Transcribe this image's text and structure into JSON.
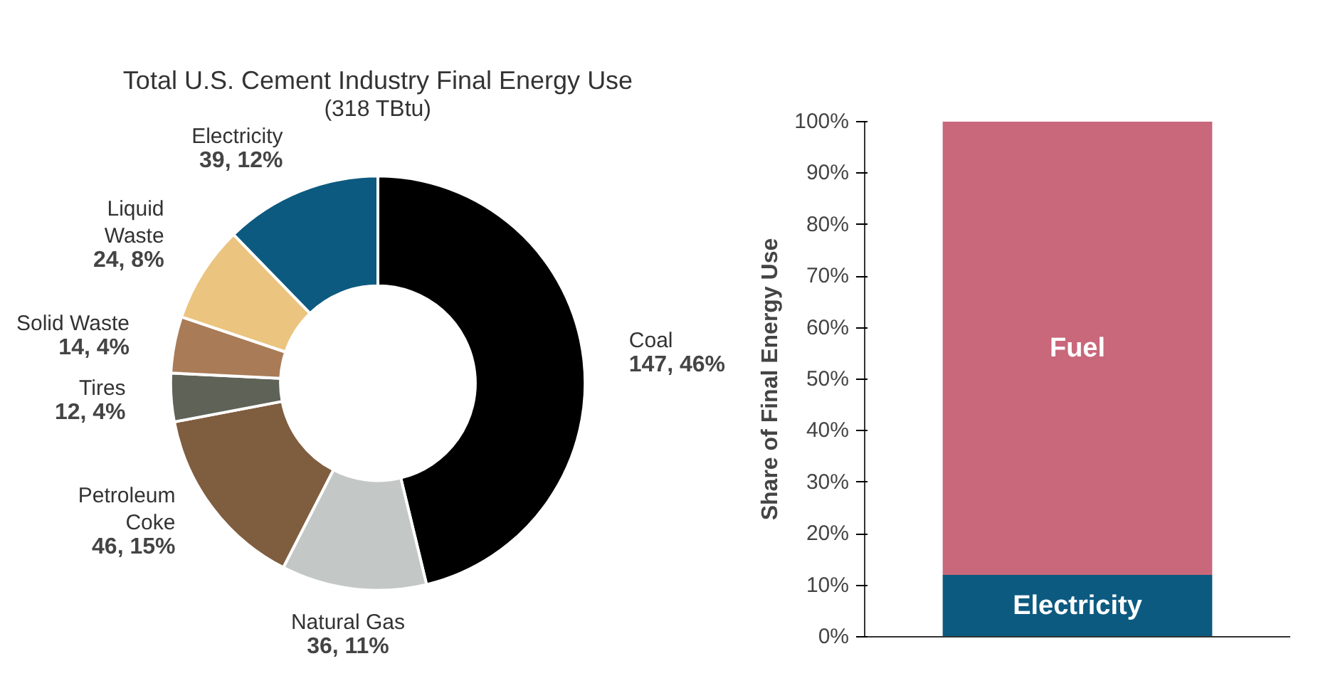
{
  "chart_data": [
    {
      "type": "donut",
      "title": "Total U.S. Cement Industry Final Energy Use",
      "subtitle": "(318 TBtu)",
      "categories": [
        "Coal",
        "Natural Gas",
        "Petroleum\nCoke",
        "Tires",
        "Solid Waste",
        "Liquid\nWaste",
        "Electricity"
      ],
      "values": [
        147,
        36,
        46,
        12,
        14,
        24,
        39
      ],
      "value_labels": [
        "147, 46%",
        "36, 11%",
        "46, 15%",
        "12, 4%",
        "14, 4%",
        "24, 8%",
        "39, 12%"
      ],
      "colors": [
        "#000000",
        "#c3c8c6",
        "#7f5d3f",
        "#5f6257",
        "#a97b57",
        "#ebc47f",
        "#0d5a80"
      ]
    },
    {
      "type": "bar",
      "stacked": true,
      "categories": [
        null
      ],
      "ylabel": "Share of Final Energy Use",
      "series": [
        {
          "name": "Electricity",
          "color": "#0d5a80",
          "values": [
            12
          ]
        },
        {
          "name": "Fuel",
          "color": "#c8687a",
          "values": [
            88
          ]
        }
      ],
      "ylim": [
        0,
        100
      ],
      "yticks": [
        {
          "value": 0,
          "label": "0%"
        },
        {
          "value": 10,
          "label": "10%"
        },
        {
          "value": 20,
          "label": "20%"
        },
        {
          "value": 30,
          "label": "30%"
        },
        {
          "value": 40,
          "label": "40%"
        },
        {
          "value": 50,
          "label": "50%"
        },
        {
          "value": 60,
          "label": "60%"
        },
        {
          "value": 70,
          "label": "70%"
        },
        {
          "value": 80,
          "label": "80%"
        },
        {
          "value": 90,
          "label": "90%"
        },
        {
          "value": 100,
          "label": "100%"
        }
      ],
      "grid": false,
      "legend": false
    }
  ]
}
